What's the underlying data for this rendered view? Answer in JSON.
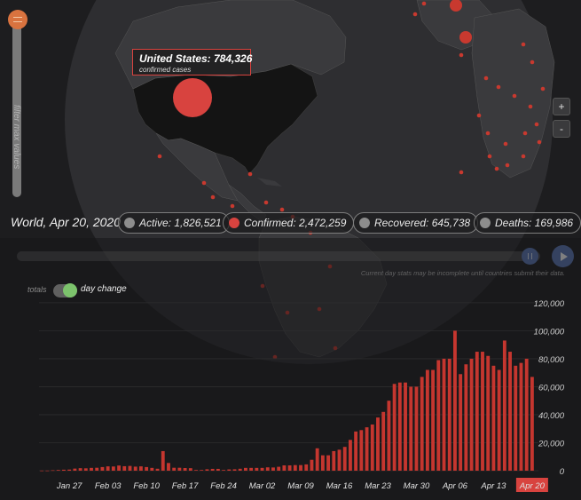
{
  "colors": {
    "confirmed": "#d8433f",
    "active": "#8d8d8d",
    "accent": "#5b78b8",
    "slider": "#d9733f",
    "toggle_on": "#7cc36c"
  },
  "filter_slider": {
    "label": "filter max values",
    "icon": "grip-lines-icon"
  },
  "zoom": {
    "in_label": "+",
    "out_label": "-"
  },
  "tooltip": {
    "title": "United States: 784,326",
    "subtitle": "confirmed cases"
  },
  "stats": {
    "date_label": "World, Apr 20, 2020",
    "active": "Active: 1,826,521",
    "confirmed": "Confirmed: 2,472,259",
    "recovered": "Recovered: 645,738",
    "deaths": "Deaths: 169,986"
  },
  "timeline": {
    "notice": "Current day stats may be incomplete until countries submit their data.",
    "pause_icon": "pause-icon",
    "play_icon": "play-icon",
    "position": 1.0
  },
  "mode_toggle": {
    "totals_label": "totals",
    "day_change_label": "day change",
    "selected": "day change"
  },
  "chart_data": {
    "type": "bar",
    "categories": [
      "Jan 22",
      "Jan 23",
      "Jan 24",
      "Jan 25",
      "Jan 26",
      "Jan 27",
      "Jan 28",
      "Jan 29",
      "Jan 30",
      "Jan 31",
      "Feb 01",
      "Feb 02",
      "Feb 03",
      "Feb 04",
      "Feb 05",
      "Feb 06",
      "Feb 07",
      "Feb 08",
      "Feb 09",
      "Feb 10",
      "Feb 11",
      "Feb 12",
      "Feb 13",
      "Feb 14",
      "Feb 15",
      "Feb 16",
      "Feb 17",
      "Feb 18",
      "Feb 19",
      "Feb 20",
      "Feb 21",
      "Feb 22",
      "Feb 23",
      "Feb 24",
      "Feb 25",
      "Feb 26",
      "Feb 27",
      "Feb 28",
      "Feb 29",
      "Mar 01",
      "Mar 02",
      "Mar 03",
      "Mar 04",
      "Mar 05",
      "Mar 06",
      "Mar 07",
      "Mar 08",
      "Mar 09",
      "Mar 10",
      "Mar 11",
      "Mar 12",
      "Mar 13",
      "Mar 14",
      "Mar 15",
      "Mar 16",
      "Mar 17",
      "Mar 18",
      "Mar 19",
      "Mar 20",
      "Mar 21",
      "Mar 22",
      "Mar 23",
      "Mar 24",
      "Mar 25",
      "Mar 26",
      "Mar 27",
      "Mar 28",
      "Mar 29",
      "Mar 30",
      "Mar 31",
      "Apr 01",
      "Apr 02",
      "Apr 03",
      "Apr 04",
      "Apr 05",
      "Apr 06",
      "Apr 07",
      "Apr 08",
      "Apr 09",
      "Apr 10",
      "Apr 11",
      "Apr 12",
      "Apr 13",
      "Apr 14",
      "Apr 15",
      "Apr 16",
      "Apr 17",
      "Apr 18",
      "Apr 19",
      "Apr 20"
    ],
    "values": [
      100,
      100,
      300,
      500,
      700,
      800,
      1500,
      1800,
      1700,
      2000,
      2100,
      2600,
      3100,
      3000,
      3700,
      3200,
      3400,
      2900,
      3100,
      2600,
      2000,
      1400,
      14000,
      5500,
      2100,
      2100,
      1900,
      1800,
      500,
      500,
      1000,
      1300,
      1300,
      500,
      900,
      1000,
      1400,
      2000,
      2000,
      2000,
      2000,
      2400,
      2300,
      2800,
      3800,
      3800,
      4000,
      4000,
      4500,
      7800,
      16000,
      11000,
      11000,
      14000,
      15000,
      17000,
      22000,
      28000,
      29000,
      31000,
      33000,
      38000,
      42000,
      50000,
      62000,
      63000,
      63000,
      60000,
      60000,
      67000,
      72000,
      72000,
      79000,
      80000,
      80000,
      100000,
      69000,
      76000,
      80000,
      85000,
      85000,
      82000,
      75000,
      72000,
      93000,
      85000,
      75000,
      77000,
      80000,
      67000
    ],
    "x_tick_labels": [
      "Jan 27",
      "Feb 03",
      "Feb 10",
      "Feb 17",
      "Feb 24",
      "Mar 02",
      "Mar 09",
      "Mar 16",
      "Mar 23",
      "Mar 30",
      "Apr 06",
      "Apr 13",
      "Apr 20"
    ],
    "y_tick_labels": [
      "120,000",
      "100,000",
      "80,000",
      "60,000",
      "40,000",
      "20,000",
      "0"
    ],
    "ylim": [
      0,
      125000
    ],
    "highlighted_category": "Apr 20",
    "title": "",
    "xlabel": "",
    "ylabel": ""
  }
}
